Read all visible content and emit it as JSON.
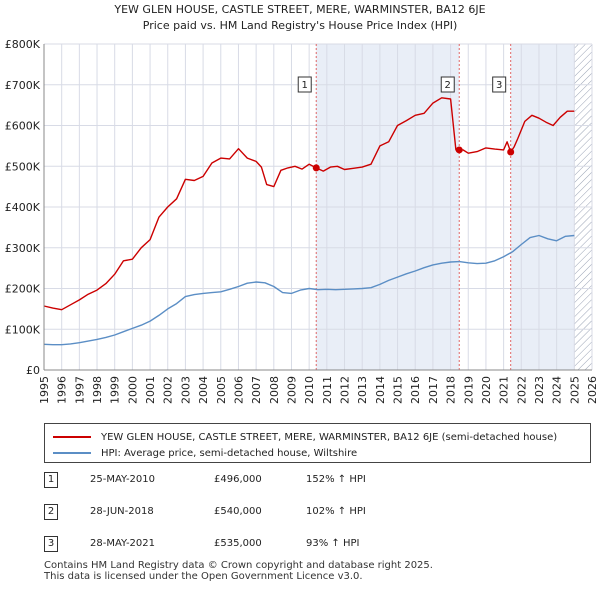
{
  "title_line1": "YEW GLEN HOUSE, CASTLE STREET, MERE, WARMINSTER, BA12 6JE",
  "title_line2": "Price paid vs. HM Land Registry's House Price Index (HPI)",
  "legend": {
    "property_label": "YEW GLEN HOUSE, CASTLE STREET, MERE, WARMINSTER, BA12 6JE (semi-detached house)",
    "hpi_label": "HPI: Average price, semi-detached house, Wiltshire"
  },
  "sales": [
    {
      "num": "1",
      "date": "25-MAY-2010",
      "price": "£496,000",
      "hpi": "152% ↑ HPI"
    },
    {
      "num": "2",
      "date": "28-JUN-2018",
      "price": "£540,000",
      "hpi": "102% ↑ HPI"
    },
    {
      "num": "3",
      "date": "28-MAY-2021",
      "price": "£535,000",
      "hpi": "93% ↑ HPI"
    }
  ],
  "footer_line1": "Contains HM Land Registry data © Crown copyright and database right 2025.",
  "footer_line2": "This data is licensed under the Open Government Licence v3.0.",
  "colors": {
    "property": "#cc0000",
    "hpi": "#5b8ec5",
    "grid": "#d8dbe6",
    "shade": "#e9eef7",
    "vline": "#e06666"
  },
  "chart_data": {
    "type": "line",
    "title": "YEW GLEN HOUSE, CASTLE STREET, MERE, WARMINSTER, BA12 6JE",
    "subtitle": "Price paid vs. HM Land Registry's House Price Index (HPI)",
    "xlabel": "",
    "ylabel": "",
    "xlim": [
      1995,
      2026
    ],
    "ylim": [
      0,
      800000
    ],
    "grid": true,
    "yticks": [
      0,
      100000,
      200000,
      300000,
      400000,
      500000,
      600000,
      700000,
      800000
    ],
    "ytick_labels": [
      "£0",
      "£100K",
      "£200K",
      "£300K",
      "£400K",
      "£500K",
      "£600K",
      "£700K",
      "£800K"
    ],
    "xticks": [
      "1995",
      "1996",
      "1997",
      "1998",
      "1999",
      "2000",
      "2001",
      "2002",
      "2003",
      "2004",
      "2005",
      "2006",
      "2007",
      "2008",
      "2009",
      "2010",
      "2011",
      "2012",
      "2013",
      "2014",
      "2015",
      "2016",
      "2017",
      "2018",
      "2019",
      "2020",
      "2021",
      "2022",
      "2023",
      "2024",
      "2025",
      "2026"
    ],
    "shaded_regions": [
      [
        2010.4,
        2018.49
      ],
      [
        2021.4,
        2025.0
      ]
    ],
    "hatched_region": [
      2025.0,
      2026.0
    ],
    "series": [
      {
        "name": "YEW GLEN HOUSE, CASTLE STREET, MERE, WARMINSTER, BA12 6JE (semi-detached house)",
        "x": [
          1995.0,
          1995.5,
          1996.0,
          1996.5,
          1997.0,
          1997.5,
          1998.0,
          1998.5,
          1999.0,
          1999.5,
          2000.0,
          2000.5,
          2001.0,
          2001.5,
          2002.0,
          2002.5,
          2003.0,
          2003.5,
          2004.0,
          2004.5,
          2005.0,
          2005.5,
          2006.0,
          2006.5,
          2007.0,
          2007.3,
          2007.6,
          2008.0,
          2008.4,
          2008.8,
          2009.2,
          2009.6,
          2010.0,
          2010.4,
          2010.8,
          2011.2,
          2011.6,
          2012.0,
          2012.5,
          2013.0,
          2013.5,
          2014.0,
          2014.5,
          2015.0,
          2015.5,
          2016.0,
          2016.5,
          2017.0,
          2017.5,
          2018.0,
          2018.3,
          2018.49,
          2018.7,
          2019.0,
          2019.5,
          2020.0,
          2020.5,
          2021.0,
          2021.2,
          2021.4,
          2021.6,
          2021.8,
          2022.2,
          2022.6,
          2023.0,
          2023.4,
          2023.8,
          2024.2,
          2024.6,
          2025.0
        ],
        "values": [
          157000,
          152000,
          148000,
          160000,
          172000,
          186000,
          196000,
          212000,
          235000,
          268000,
          272000,
          300000,
          320000,
          375000,
          400000,
          420000,
          468000,
          465000,
          475000,
          508000,
          520000,
          518000,
          543000,
          520000,
          512000,
          498000,
          455000,
          450000,
          490000,
          496000,
          500000,
          493000,
          505000,
          496000,
          488000,
          498000,
          500000,
          492000,
          495000,
          498000,
          505000,
          550000,
          560000,
          600000,
          612000,
          625000,
          630000,
          655000,
          668000,
          665000,
          540000,
          540000,
          540000,
          532000,
          536000,
          545000,
          542000,
          540000,
          560000,
          535000,
          548000,
          568000,
          610000,
          625000,
          618000,
          608000,
          600000,
          620000,
          635000,
          635000
        ]
      },
      {
        "name": "HPI: Average price, semi-detached house, Wiltshire",
        "x": [
          1995.0,
          1995.5,
          1996.0,
          1996.5,
          1997.0,
          1997.5,
          1998.0,
          1998.5,
          1999.0,
          1999.5,
          2000.0,
          2000.5,
          2001.0,
          2001.5,
          2002.0,
          2002.5,
          2003.0,
          2003.5,
          2004.0,
          2004.5,
          2005.0,
          2005.5,
          2006.0,
          2006.5,
          2007.0,
          2007.5,
          2008.0,
          2008.5,
          2009.0,
          2009.5,
          2010.0,
          2010.5,
          2011.0,
          2011.5,
          2012.0,
          2012.5,
          2013.0,
          2013.5,
          2014.0,
          2014.5,
          2015.0,
          2015.5,
          2016.0,
          2016.5,
          2017.0,
          2017.5,
          2018.0,
          2018.5,
          2019.0,
          2019.5,
          2020.0,
          2020.5,
          2021.0,
          2021.5,
          2022.0,
          2022.5,
          2023.0,
          2023.5,
          2024.0,
          2024.5,
          2025.0
        ],
        "values": [
          63000,
          62000,
          62000,
          64000,
          67000,
          71000,
          75000,
          80000,
          86000,
          94000,
          102000,
          110000,
          120000,
          134000,
          150000,
          163000,
          180000,
          185000,
          188000,
          190000,
          192000,
          198000,
          205000,
          213000,
          216000,
          214000,
          205000,
          190000,
          188000,
          196000,
          200000,
          197000,
          198000,
          197000,
          198000,
          199000,
          200000,
          202000,
          210000,
          220000,
          228000,
          236000,
          243000,
          251000,
          258000,
          262000,
          265000,
          266000,
          263000,
          261000,
          262000,
          268000,
          278000,
          290000,
          308000,
          325000,
          330000,
          322000,
          317000,
          328000,
          330000
        ]
      }
    ],
    "annotations": [
      {
        "label": "1",
        "x": 2010.4,
        "value": 496000
      },
      {
        "label": "2",
        "x": 2018.49,
        "value": 540000
      },
      {
        "label": "3",
        "x": 2021.4,
        "value": 535000
      }
    ]
  }
}
